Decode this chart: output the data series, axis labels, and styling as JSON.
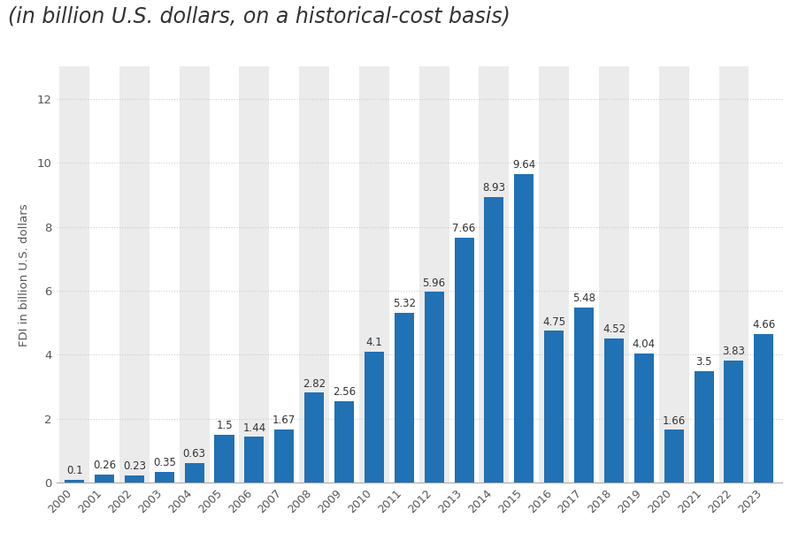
{
  "years": [
    2000,
    2001,
    2002,
    2003,
    2004,
    2005,
    2006,
    2007,
    2008,
    2009,
    2010,
    2011,
    2012,
    2013,
    2014,
    2015,
    2016,
    2017,
    2018,
    2019,
    2020,
    2021,
    2022,
    2023
  ],
  "values": [
    0.1,
    0.26,
    0.23,
    0.35,
    0.63,
    1.5,
    1.44,
    1.67,
    2.82,
    2.56,
    4.1,
    5.32,
    5.96,
    7.66,
    8.93,
    9.64,
    4.75,
    5.48,
    4.52,
    4.04,
    1.66,
    3.5,
    3.83,
    4.66
  ],
  "bar_color": "#2171b5",
  "subtitle": "(in billion U.S. dollars, on a historical-cost basis)",
  "ylabel": "FDI in billion U.S. dollars",
  "ylim": [
    0,
    13
  ],
  "yticks": [
    0,
    2,
    4,
    6,
    8,
    10,
    12
  ],
  "background_color": "#ffffff",
  "plot_bg_color": "#ffffff",
  "col_shade_color": "#ebebeb",
  "grid_color": "#cccccc",
  "label_fontsize": 8.5,
  "axis_label_fontsize": 9.5,
  "subtitle_fontsize": 17,
  "xtick_fontsize": 9,
  "ytick_fontsize": 9.5
}
